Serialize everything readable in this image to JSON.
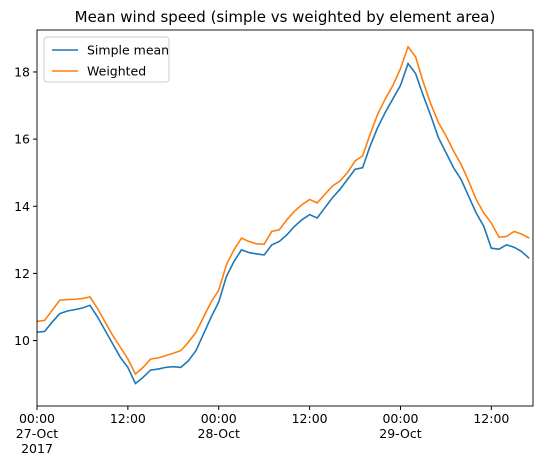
{
  "chart_data": {
    "type": "line",
    "title": "Mean wind speed (simple vs weighted by element area)",
    "x": [
      "2017-10-27T00:00",
      "2017-10-27T01:00",
      "2017-10-27T02:00",
      "2017-10-27T03:00",
      "2017-10-27T04:00",
      "2017-10-27T05:00",
      "2017-10-27T06:00",
      "2017-10-27T07:00",
      "2017-10-27T08:00",
      "2017-10-27T09:00",
      "2017-10-27T10:00",
      "2017-10-27T11:00",
      "2017-10-27T12:00",
      "2017-10-27T13:00",
      "2017-10-27T14:00",
      "2017-10-27T15:00",
      "2017-10-27T16:00",
      "2017-10-27T17:00",
      "2017-10-27T18:00",
      "2017-10-27T19:00",
      "2017-10-27T20:00",
      "2017-10-27T21:00",
      "2017-10-27T22:00",
      "2017-10-27T23:00",
      "2017-10-28T00:00",
      "2017-10-28T01:00",
      "2017-10-28T02:00",
      "2017-10-28T03:00",
      "2017-10-28T04:00",
      "2017-10-28T05:00",
      "2017-10-28T06:00",
      "2017-10-28T07:00",
      "2017-10-28T08:00",
      "2017-10-28T09:00",
      "2017-10-28T10:00",
      "2017-10-28T11:00",
      "2017-10-28T12:00",
      "2017-10-28T13:00",
      "2017-10-28T14:00",
      "2017-10-28T15:00",
      "2017-10-28T16:00",
      "2017-10-28T17:00",
      "2017-10-28T18:00",
      "2017-10-28T19:00",
      "2017-10-28T20:00",
      "2017-10-28T21:00",
      "2017-10-28T22:00",
      "2017-10-28T23:00",
      "2017-10-29T00:00",
      "2017-10-29T01:00",
      "2017-10-29T02:00",
      "2017-10-29T03:00",
      "2017-10-29T04:00",
      "2017-10-29T05:00",
      "2017-10-29T06:00",
      "2017-10-29T07:00",
      "2017-10-29T08:00",
      "2017-10-29T09:00",
      "2017-10-29T10:00",
      "2017-10-29T11:00",
      "2017-10-29T12:00",
      "2017-10-29T13:00",
      "2017-10-29T14:00",
      "2017-10-29T15:00",
      "2017-10-29T16:00",
      "2017-10-29T17:00"
    ],
    "series": [
      {
        "name": "Simple mean",
        "color": "#1f77b4",
        "values": [
          10.25,
          10.27,
          10.55,
          10.8,
          10.88,
          10.92,
          10.97,
          11.05,
          10.7,
          10.3,
          9.9,
          9.5,
          9.2,
          8.72,
          8.9,
          9.12,
          9.15,
          9.2,
          9.22,
          9.2,
          9.4,
          9.7,
          10.2,
          10.7,
          11.15,
          11.9,
          12.35,
          12.7,
          12.62,
          12.58,
          12.55,
          12.85,
          12.95,
          13.15,
          13.4,
          13.6,
          13.75,
          13.65,
          13.95,
          14.25,
          14.5,
          14.8,
          15.1,
          15.15,
          15.8,
          16.35,
          16.8,
          17.2,
          17.6,
          18.25,
          17.95,
          17.3,
          16.7,
          16.05,
          15.6,
          15.15,
          14.8,
          14.3,
          13.8,
          13.4,
          12.75,
          12.72,
          12.85,
          12.78,
          12.65,
          12.45
        ]
      },
      {
        "name": "Weighted",
        "color": "#ff7f0e",
        "values": [
          10.57,
          10.6,
          10.9,
          11.2,
          11.22,
          11.23,
          11.25,
          11.3,
          10.95,
          10.55,
          10.15,
          9.8,
          9.45,
          9.0,
          9.2,
          9.45,
          9.48,
          9.55,
          9.62,
          9.7,
          9.95,
          10.25,
          10.7,
          11.15,
          11.5,
          12.25,
          12.7,
          13.05,
          12.95,
          12.88,
          12.87,
          13.25,
          13.3,
          13.6,
          13.85,
          14.05,
          14.2,
          14.1,
          14.35,
          14.6,
          14.75,
          15.0,
          15.35,
          15.5,
          16.15,
          16.75,
          17.2,
          17.6,
          18.1,
          18.75,
          18.45,
          17.7,
          17.05,
          16.5,
          16.1,
          15.65,
          15.25,
          14.75,
          14.2,
          13.8,
          13.5,
          13.08,
          13.1,
          13.25,
          13.17,
          13.05
        ]
      }
    ],
    "xlim": [
      "2017-10-27T00:00",
      "2017-10-29T17:30"
    ],
    "xticks": [
      {
        "value": "2017-10-27T00:00",
        "label": "00:00\n27-Oct\n2017"
      },
      {
        "value": "2017-10-27T12:00",
        "label": "12:00"
      },
      {
        "value": "2017-10-28T00:00",
        "label": "00:00\n28-Oct"
      },
      {
        "value": "2017-10-28T12:00",
        "label": "12:00"
      },
      {
        "value": "2017-10-29T00:00",
        "label": "00:00\n29-Oct"
      },
      {
        "value": "2017-10-29T12:00",
        "label": "12:00"
      }
    ],
    "ylim": [
      8.05,
      19.25
    ],
    "yticks": [
      10,
      12,
      14,
      16,
      18
    ],
    "legend": "upper left",
    "grid": false
  }
}
